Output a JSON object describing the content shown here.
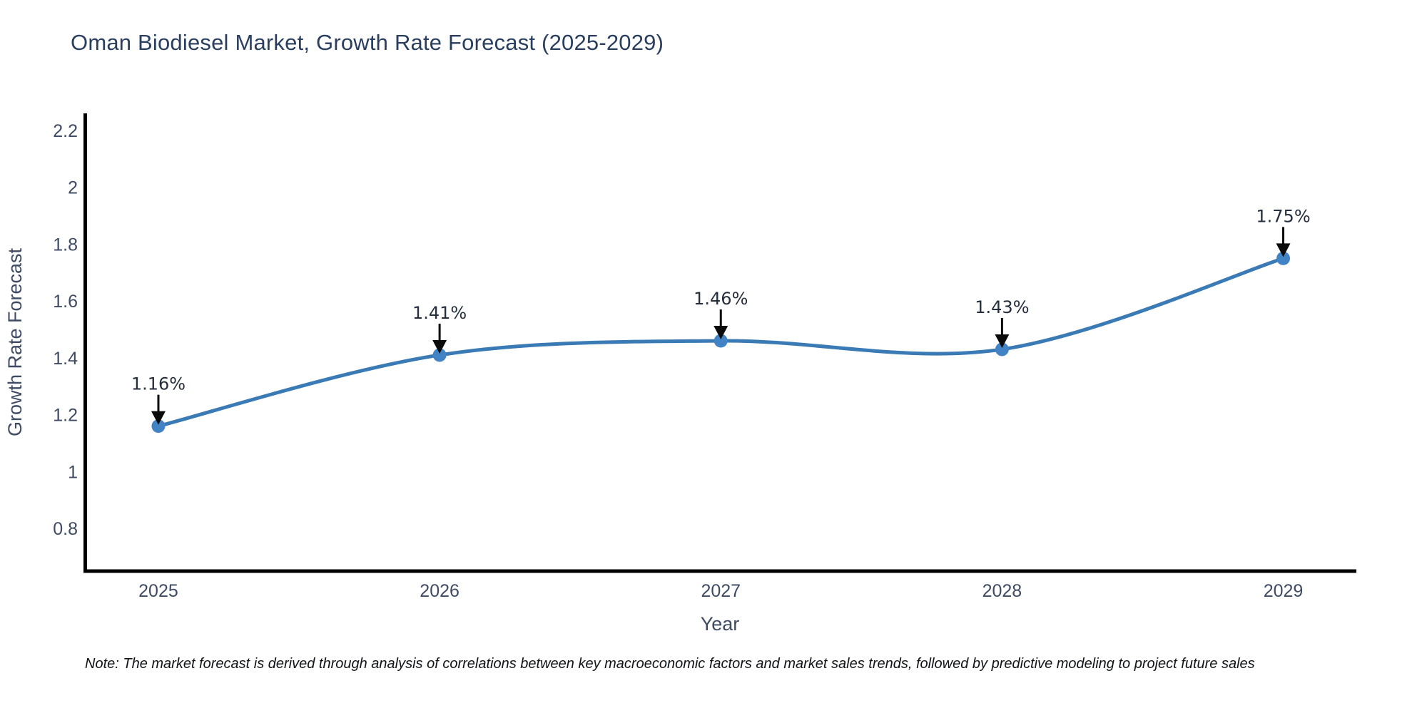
{
  "footnote": {
    "text": "Note: The market forecast is derived through analysis of correlations between key macroeconomic factors and market sales trends, followed by predictive modeling to project future sales"
  },
  "chart_data": {
    "type": "line",
    "title": "Oman Biodiesel Market, Growth Rate Forecast (2025-2029)",
    "xlabel": "Year",
    "ylabel": "Growth Rate Forecast",
    "x": [
      2025,
      2026,
      2027,
      2028,
      2029
    ],
    "x_tick_labels": [
      "2025",
      "2026",
      "2027",
      "2028",
      "2029"
    ],
    "series": [
      {
        "name": "Growth Rate Forecast",
        "values": [
          1.16,
          1.41,
          1.46,
          1.43,
          1.75
        ]
      }
    ],
    "point_labels": [
      "1.16%",
      "1.41%",
      "1.46%",
      "1.43%",
      "1.75%"
    ],
    "yticks": [
      0.8,
      1,
      1.2,
      1.4,
      1.6,
      1.8,
      2,
      2.2
    ],
    "ytick_labels": [
      "0.8",
      "1",
      "1.2",
      "1.4",
      "1.6",
      "1.8",
      "2",
      "2.2"
    ],
    "xlim": [
      2024.74,
      2029.26
    ],
    "ylim": [
      0.65,
      2.26
    ],
    "grid": false,
    "legend": "none",
    "line_shape": "spline",
    "annotations": "down-arrow-per-point",
    "colors": {
      "line": "#3a7ab5",
      "marker": "#4183c4",
      "arrow": "#0b0b0b",
      "annotation_text": "#242e3c",
      "axis": "#000000",
      "tick_text": "#3e4b63",
      "title_text": "#2a3f5f",
      "background": "#ffffff"
    }
  }
}
